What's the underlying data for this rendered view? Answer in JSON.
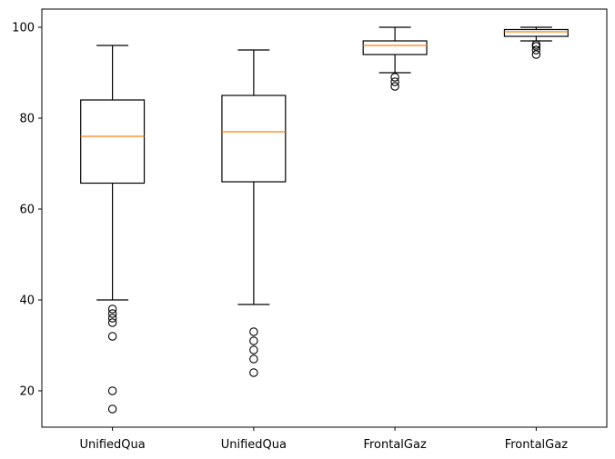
{
  "chart_data": {
    "type": "box",
    "title": "",
    "xlabel": "",
    "ylabel": "",
    "ylim": [
      12,
      104
    ],
    "yticks": [
      20,
      40,
      60,
      80,
      100
    ],
    "grid": false,
    "legend": "none",
    "colors": {
      "box": "#000000",
      "median": "#ff7f0e",
      "outlier": "#000000"
    },
    "categories": [
      "UnifiedQua",
      "UnifiedQua",
      "FrontalGaz",
      "FrontalGaz"
    ],
    "series": [
      {
        "whislo": 40,
        "q1": 65.7,
        "median": 76,
        "q3": 84,
        "whishi": 96,
        "fliers": [
          38,
          37,
          36,
          35,
          32,
          20,
          16
        ]
      },
      {
        "whislo": 39,
        "q1": 66,
        "median": 77,
        "q3": 85,
        "whishi": 95,
        "fliers": [
          33,
          31,
          29,
          27,
          24
        ]
      },
      {
        "whislo": 90,
        "q1": 94,
        "median": 96,
        "q3": 97,
        "whishi": 100,
        "fliers": [
          89,
          88,
          87
        ]
      },
      {
        "whislo": 97,
        "q1": 98,
        "median": 99,
        "q3": 99.5,
        "whishi": 100,
        "fliers": [
          96.2,
          95.8,
          95,
          94
        ]
      }
    ]
  }
}
